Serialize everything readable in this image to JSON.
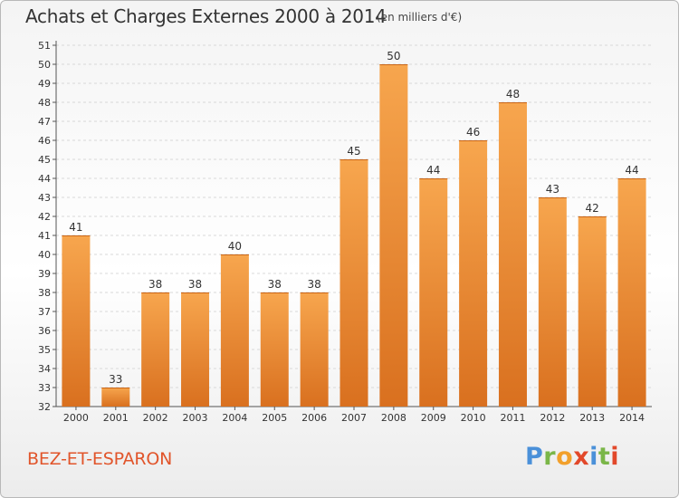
{
  "header": {
    "title": "Achats et Charges Externes 2000 à 2014",
    "unit": "(en milliers d'€)"
  },
  "footer": {
    "place": "BEZ-ET-ESPARON",
    "logo_text": "Proxiti"
  },
  "colors": {
    "bar_top": "#f7a64e",
    "bar_bottom": "#d9701f",
    "grid": "#d8d8d8",
    "place": "#e1552b"
  },
  "chart_data": {
    "type": "bar",
    "title": "Achats et Charges Externes 2000 à 2014",
    "subtitle": "(en milliers d'€)",
    "xlabel": "",
    "ylabel": "",
    "categories": [
      "2000",
      "2001",
      "2002",
      "2003",
      "2004",
      "2005",
      "2006",
      "2007",
      "2008",
      "2009",
      "2010",
      "2011",
      "2012",
      "2013",
      "2014"
    ],
    "values": [
      41,
      33,
      38,
      38,
      40,
      38,
      38,
      45,
      50,
      44,
      46,
      48,
      43,
      42,
      44
    ],
    "ylim": [
      32,
      51
    ],
    "yticks": [
      32,
      33,
      34,
      35,
      36,
      37,
      38,
      39,
      40,
      41,
      42,
      43,
      44,
      45,
      46,
      47,
      48,
      49,
      50,
      51
    ],
    "grid": true,
    "legend": "none"
  }
}
